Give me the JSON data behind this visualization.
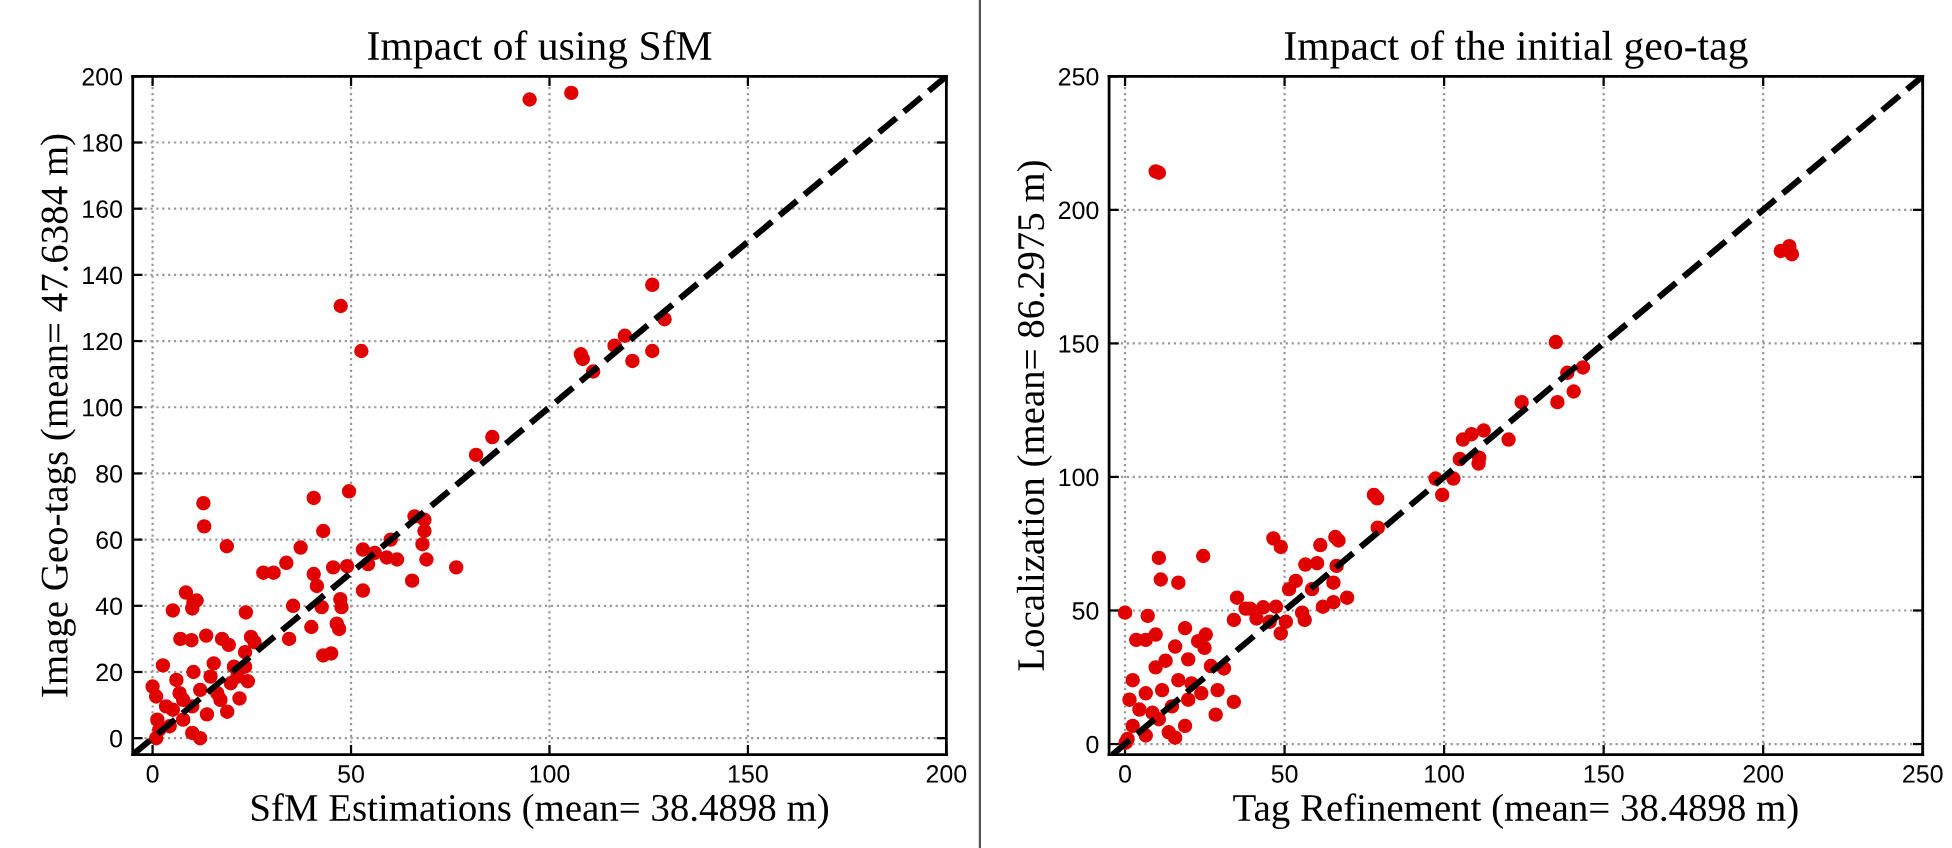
{
  "chart_data": [
    {
      "type": "scatter",
      "title": "Impact of using SfM",
      "xlabel": "SfM Estimations (mean= 38.4898 m)",
      "ylabel": "Image Geo-tags (mean= 47.6384 m)",
      "xlim": [
        -5,
        200
      ],
      "ylim": [
        -5,
        200
      ],
      "xticks": [
        0,
        50,
        100,
        150,
        200
      ],
      "yticks": [
        0,
        20,
        40,
        60,
        80,
        100,
        120,
        140,
        160,
        180,
        200
      ],
      "grid": true,
      "series": [
        {
          "color": "#e00000",
          "marker": "circle",
          "x": [
            95,
            105.5,
            47.4,
            52.6,
            125.9,
            129,
            119,
            116.4,
            107.9,
            108.4,
            111,
            120.9,
            125.9,
            85.6,
            81.5,
            12.8,
            13,
            40.6,
            49.5,
            18.7,
            43,
            37.3,
            33.7,
            27.9,
            30.5,
            66,
            68.5,
            68.5,
            68,
            69,
            76.5,
            65.4,
            60,
            53,
            56,
            59,
            61.6,
            54.3,
            49,
            45.5,
            40.6,
            41.4,
            53,
            42.6,
            47.3,
            47.6,
            35.4,
            40,
            46.4,
            47,
            34.4,
            43,
            45,
            8.4,
            5.1,
            10.3,
            11.1,
            10,
            23.5,
            7,
            9.8,
            13.5,
            17.5,
            19.2,
            24.8,
            25.7,
            23.3,
            2.6,
            0,
            0.9,
            1.2,
            0.9,
            12,
            10,
            6,
            10.3,
            15.4,
            20.5,
            23.3,
            24,
            21.9,
            18.8,
            13.7,
            7.7,
            4.3,
            3.4,
            7.7,
            12,
            16.3,
            19.7,
            14.6,
            6.8,
            10,
            17.1,
            21.4,
            5.1,
            1.7
          ],
          "values": [
            193,
            195,
            130.6,
            117,
            137,
            126.6,
            121.6,
            118.6,
            116,
            114.6,
            110.8,
            114,
            117,
            91,
            85.6,
            71,
            64,
            72.6,
            74.6,
            58,
            62.6,
            57.6,
            53,
            50,
            50,
            67,
            66,
            62.6,
            58.6,
            54,
            51.6,
            47.6,
            60,
            57,
            56,
            54.6,
            54,
            52.6,
            52,
            51.6,
            49.6,
            46,
            44.6,
            39.6,
            42,
            39.6,
            40,
            33.6,
            34.6,
            33,
            30,
            25,
            25.6,
            44,
            38.6,
            41,
            41.6,
            39.2,
            38,
            30,
            29.6,
            31,
            30,
            28.2,
            30.6,
            29,
            26,
            22,
            15.6,
            12.6,
            5.6,
            0,
            0,
            1.6,
            17.6,
            20,
            22.6,
            21.6,
            21.6,
            17.2,
            12,
            8,
            7.2,
            5.6,
            3.6,
            9.6,
            11.6,
            14.6,
            13.6,
            16.6,
            18.6,
            13.6,
            9.6,
            11.6,
            18.6,
            8.6,
            2.6
          ]
        },
        {
          "type": "line",
          "color": "#000000",
          "marker": "none",
          "line_style": "dashed",
          "x": [
            -5,
            200
          ],
          "values": [
            -5,
            200
          ]
        }
      ]
    },
    {
      "type": "scatter",
      "title": "Impact of the initial geo-tag",
      "xlabel": "Tag Refinement (mean= 38.4898 m)",
      "ylabel": "Localization (mean= 86.2975 m)",
      "xlim": [
        -5,
        250
      ],
      "ylim": [
        -4,
        250
      ],
      "xticks": [
        0,
        50,
        100,
        150,
        200,
        250
      ],
      "yticks": [
        0,
        50,
        100,
        150,
        200,
        250
      ],
      "grid": true,
      "series": [
        {
          "color": "#e00000",
          "marker": "circle",
          "x": [
            9.6,
            10.6,
            205.5,
            208.2,
            209,
            135,
            135.5,
            138.6,
            140.6,
            143.5,
            124.3,
            105.9,
            108.6,
            112.4,
            104.9,
            111,
            110.8,
            120.2,
            97.3,
            102.9,
            99.4,
            78,
            79,
            79.2,
            46.5,
            48.8,
            65.9,
            66.9,
            61.2,
            66.3,
            56.5,
            60.2,
            65.3,
            69.6,
            65.3,
            62,
            53.5,
            51.4,
            58.6,
            55.5,
            56.3,
            50.4,
            48.8,
            39.2,
            43.3,
            47.3,
            41.2,
            45.3,
            35.1,
            34.1,
            37.8,
            31,
            34.1,
            29,
            28.4,
            10.6,
            24.5,
            11.2,
            16.7,
            0,
            7.1,
            3.5,
            6.5,
            9.6,
            18.8,
            25.3,
            22.9,
            24.9,
            15.7,
            12.7,
            9.6,
            19.8,
            26.9,
            20.8,
            16.7,
            11.6,
            6.5,
            2.4,
            1.4,
            4.5,
            8.6,
            14.7,
            19.8,
            23.9,
            18.8,
            13.7,
            6.5,
            0.8,
            2.4,
            10.6,
            15.7,
            0.2
          ],
          "values": [
            214.4,
            213.9,
            184.6,
            186.4,
            183.4,
            150.5,
            128,
            139,
            132,
            141,
            128,
            114,
            116,
            117.4,
            106.7,
            107.2,
            105,
            114,
            99.4,
            99.4,
            93.3,
            93.3,
            92,
            81,
            77,
            73.8,
            77.5,
            76.2,
            74.5,
            66.7,
            67.2,
            67.7,
            60.4,
            54.8,
            53.1,
            51.4,
            61.1,
            58,
            58,
            49.2,
            46.5,
            45.8,
            41.4,
            50.7,
            51.2,
            51.4,
            47,
            45.8,
            54.8,
            46.5,
            50.7,
            28.3,
            15.8,
            20.2,
            11,
            69.7,
            70.4,
            61.6,
            60.4,
            49.2,
            48,
            39,
            39,
            41,
            43.4,
            41,
            38.5,
            36,
            36.5,
            31.2,
            28.7,
            31.7,
            29.2,
            22.7,
            23.9,
            20.2,
            19,
            23.9,
            16.6,
            12.9,
            11.7,
            14.1,
            16.6,
            19,
            6.8,
            4.4,
            3.2,
            1.9,
            6.8,
            9.3,
            2.4,
            0.5
          ]
        },
        {
          "type": "line",
          "color": "#000000",
          "marker": "none",
          "line_style": "dashed",
          "x": [
            -4,
            250
          ],
          "values": [
            -4,
            250
          ]
        }
      ]
    }
  ]
}
